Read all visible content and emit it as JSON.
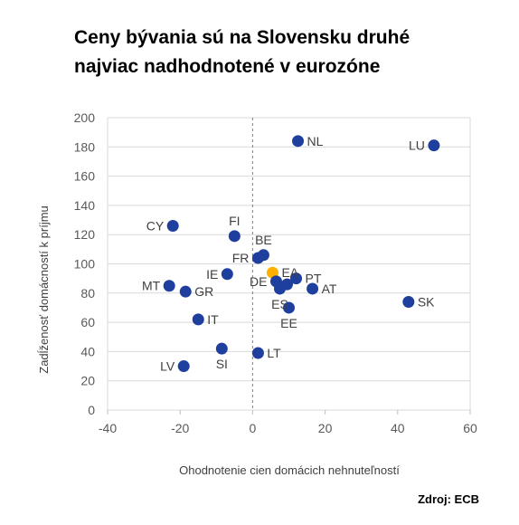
{
  "title": {
    "line1": "Ceny bývania sú na Slovensku druhé",
    "line2": "najviac nadhodnotené v eurozóne"
  },
  "source": "Zdroj: ECB",
  "colors": {
    "point": "#1f3f9e",
    "highlight": "#ffb000",
    "grid": "#d9d9d9",
    "zero_line": "#7f7f7f"
  },
  "chart_data": {
    "type": "scatter",
    "title": "Ceny bývania sú na Slovensku druhé najviac nadhodnotené v eurozóne",
    "xlabel": "Ohodnotenie cien domácich nehnuteľností",
    "ylabel": "Zadĺženosť domácností k príjmu",
    "xlim": [
      -40,
      60
    ],
    "ylim": [
      0,
      200
    ],
    "xticks": [
      -40,
      -20,
      0,
      20,
      40,
      60
    ],
    "yticks": [
      0,
      20,
      40,
      60,
      80,
      100,
      120,
      140,
      160,
      180,
      200
    ],
    "grid": "horizontal",
    "vertical_reference": 0,
    "points": [
      {
        "label": "NL",
        "x": 12.5,
        "y": 184,
        "pos": "right"
      },
      {
        "label": "LU",
        "x": 50,
        "y": 181,
        "pos": "left"
      },
      {
        "label": "CY",
        "x": -22,
        "y": 126,
        "pos": "left"
      },
      {
        "label": "FI",
        "x": -5,
        "y": 119,
        "pos": "above"
      },
      {
        "label": "BE",
        "x": 3,
        "y": 106,
        "pos": "above"
      },
      {
        "label": "FR",
        "x": 1.5,
        "y": 104,
        "pos": "left"
      },
      {
        "label": "EA",
        "x": 5.5,
        "y": 94,
        "pos": "right",
        "highlight": true
      },
      {
        "label": "PT",
        "x": 12,
        "y": 90,
        "pos": "right"
      },
      {
        "label": "IE",
        "x": -7,
        "y": 93,
        "pos": "left"
      },
      {
        "label": "DE",
        "x": 6.5,
        "y": 88,
        "pos": "left"
      },
      {
        "label": "",
        "x": 9.5,
        "y": 86,
        "pos": "none"
      },
      {
        "label": "ES",
        "x": 7.5,
        "y": 83,
        "pos": "below"
      },
      {
        "label": "AT",
        "x": 16.5,
        "y": 83,
        "pos": "right"
      },
      {
        "label": "EE",
        "x": 10,
        "y": 70,
        "pos": "below"
      },
      {
        "label": "SK",
        "x": 43,
        "y": 74,
        "pos": "right"
      },
      {
        "label": "MT",
        "x": -23,
        "y": 85,
        "pos": "left"
      },
      {
        "label": "GR",
        "x": -18.5,
        "y": 81,
        "pos": "right"
      },
      {
        "label": "IT",
        "x": -15,
        "y": 62,
        "pos": "right"
      },
      {
        "label": "SI",
        "x": -8.5,
        "y": 42,
        "pos": "below"
      },
      {
        "label": "LT",
        "x": 1.5,
        "y": 39,
        "pos": "right"
      },
      {
        "label": "LV",
        "x": -19,
        "y": 30,
        "pos": "left"
      }
    ]
  }
}
